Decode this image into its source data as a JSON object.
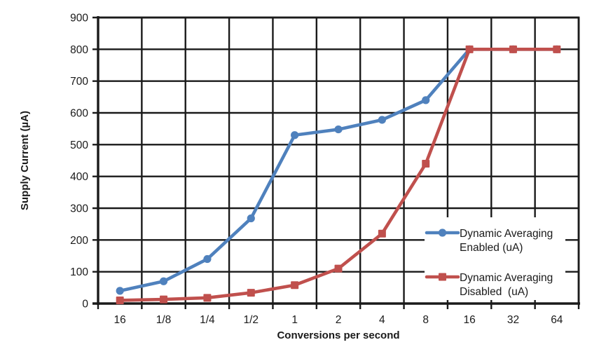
{
  "chart_data": {
    "type": "line",
    "title": "",
    "xlabel": "Conversions per second",
    "ylabel": "Supply Current (µA)",
    "x_categories": [
      "16",
      "1/8",
      "1/4",
      "1/2",
      "1",
      "2",
      "4",
      "8",
      "16",
      "32",
      "64"
    ],
    "y_ticks": [
      0,
      100,
      200,
      300,
      400,
      500,
      600,
      700,
      800,
      900
    ],
    "ylim": [
      0,
      900
    ],
    "grid": true,
    "grid_color": "#1a1a1a",
    "background_color": "#ffffff",
    "legend_position": "inside-bottom-right",
    "series": [
      {
        "name": "Dynamic Averaging Enabled (uA)",
        "legend_lines": [
          "Dynamic Averaging",
          "Enabled (uA)"
        ],
        "color": "#4F81BD",
        "marker": "circle",
        "values": [
          40,
          70,
          140,
          268,
          530,
          548,
          578,
          640,
          800,
          800,
          800
        ]
      },
      {
        "name": "Dynamic Averaging Disabled (uA)",
        "legend_lines": [
          "Dynamic Averaging",
          "Disabled  (uA)"
        ],
        "color": "#C0504D",
        "marker": "square",
        "values": [
          10,
          13,
          18,
          34,
          58,
          110,
          220,
          440,
          800,
          800,
          800
        ]
      }
    ]
  }
}
